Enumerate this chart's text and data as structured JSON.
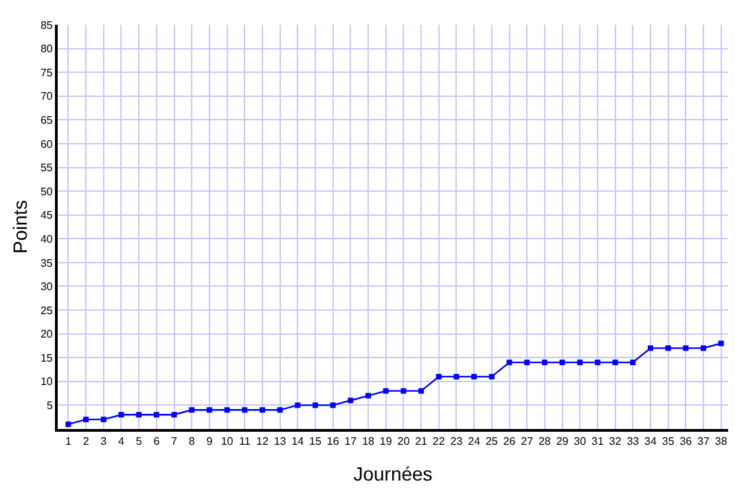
{
  "chart_data": {
    "type": "line",
    "xlabel": "Journées",
    "ylabel": "Points",
    "x": [
      1,
      2,
      3,
      4,
      5,
      6,
      7,
      8,
      9,
      10,
      11,
      12,
      13,
      14,
      15,
      16,
      17,
      18,
      19,
      20,
      21,
      22,
      23,
      24,
      25,
      26,
      27,
      28,
      29,
      30,
      31,
      32,
      33,
      34,
      35,
      36,
      37,
      38
    ],
    "series": [
      {
        "color": "#0000ff",
        "values": [
          1,
          2,
          2,
          3,
          3,
          3,
          3,
          4,
          4,
          4,
          4,
          4,
          4,
          5,
          5,
          5,
          6,
          7,
          8,
          8,
          8,
          11,
          11,
          11,
          11,
          14,
          14,
          14,
          14,
          14,
          14,
          14,
          14,
          17,
          17,
          17,
          17,
          18
        ]
      }
    ],
    "xlim": [
      0.4,
      38.4
    ],
    "xticks": [
      1,
      2,
      3,
      4,
      5,
      6,
      7,
      8,
      9,
      10,
      11,
      12,
      13,
      14,
      15,
      16,
      17,
      18,
      19,
      20,
      21,
      22,
      23,
      24,
      25,
      26,
      27,
      28,
      29,
      30,
      31,
      32,
      33,
      34,
      35,
      36,
      37,
      38
    ],
    "ylim": [
      0,
      85
    ],
    "yticks": [
      5,
      10,
      15,
      20,
      25,
      30,
      35,
      40,
      45,
      50,
      55,
      60,
      65,
      70,
      75,
      80,
      85
    ],
    "grid": true,
    "marker": "square",
    "line_style": "solid"
  }
}
